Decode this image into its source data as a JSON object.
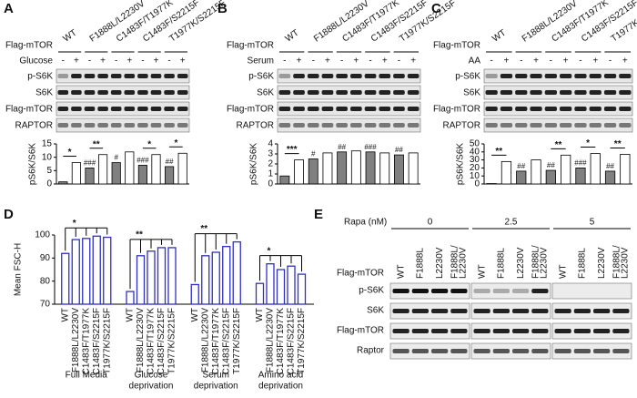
{
  "panel_labels": [
    "A",
    "B",
    "C",
    "D",
    "E"
  ],
  "blots": [
    {
      "construct_label": "Flag-mTOR",
      "lanes": [
        "WT",
        "F1888L/L2230V",
        "C1483F/T1977K",
        "C1483F/S2215F",
        "T1977K/S2215F"
      ],
      "treatment": "Glucose",
      "signs": [
        "-",
        "+"
      ],
      "rows": [
        "p-S6K",
        "S6K",
        "Flag-mTOR",
        "RAPTOR"
      ]
    },
    {
      "construct_label": "Flag-mTOR",
      "lanes": [
        "WT",
        "F1888L/L2230V",
        "C1483F/T1977K",
        "C1483F/S2215F",
        "T1977K/S2215F"
      ],
      "treatment": "Serum",
      "signs": [
        "-",
        "+"
      ],
      "rows": [
        "p-S6K",
        "S6K",
        "Flag-mTOR",
        "RAPTOR"
      ]
    },
    {
      "construct_label": "Flag-mTOR",
      "lanes": [
        "WT",
        "F1888L/L2230V",
        "C1483F/T1977K",
        "C1483F/S2215F",
        "T1977K/S2215F"
      ],
      "treatment": "AA",
      "signs": [
        "-",
        "+"
      ],
      "rows": [
        "p-S6K",
        "S6K",
        "Flag-mTOR",
        "RAPTOR"
      ]
    },
    {
      "treatment": "Rapa (nM)",
      "doses": [
        "0",
        "2.5",
        "5"
      ],
      "construct_label": "Flag-mTOR",
      "lanes": [
        [
          "WT"
        ],
        [
          "F1888L"
        ],
        [
          "L2230V"
        ],
        [
          "F1888L/",
          "L2230V"
        ]
      ],
      "rows": [
        "p-S6K",
        "S6K",
        "Flag-mTOR",
        "Raptor"
      ]
    }
  ],
  "chart_data": [
    {
      "type": "bar",
      "ylabel": "pS6K/S6K",
      "values": [
        0.8,
        8,
        6,
        11,
        8,
        12,
        7,
        11,
        6.5,
        11.5
      ],
      "colors": [
        "#808080",
        "#ffffff",
        "#808080",
        "#ffffff",
        "#808080",
        "#ffffff",
        "#808080",
        "#ffffff",
        "#808080",
        "#ffffff"
      ],
      "value_annotations": [
        null,
        null,
        "###",
        null,
        "#",
        null,
        "###",
        null,
        "##",
        null
      ],
      "pair_brackets": [
        "*",
        "**",
        null,
        "*",
        "*"
      ],
      "ylim": [
        0,
        15
      ],
      "yticks": [
        0,
        5,
        10,
        15
      ]
    },
    {
      "type": "bar",
      "ylabel": "pS6K/S6K",
      "values": [
        0.8,
        2.4,
        2.5,
        3.1,
        3.2,
        3.3,
        3.2,
        3.1,
        2.9,
        3.1
      ],
      "colors": [
        "#808080",
        "#ffffff",
        "#808080",
        "#ffffff",
        "#808080",
        "#ffffff",
        "#808080",
        "#ffffff",
        "#808080",
        "#ffffff"
      ],
      "value_annotations": [
        null,
        null,
        "#",
        null,
        "##",
        null,
        "###",
        null,
        "##",
        null
      ],
      "pair_brackets": [
        "***",
        null,
        null,
        null,
        null
      ],
      "ylim": [
        0,
        4
      ],
      "yticks": [
        0,
        1,
        2,
        3,
        4
      ]
    },
    {
      "type": "bar",
      "ylabel": "pS6K/S6K",
      "values": [
        0.5,
        28,
        16,
        30,
        17,
        36,
        20,
        38,
        16,
        37
      ],
      "colors": [
        "#808080",
        "#ffffff",
        "#808080",
        "#ffffff",
        "#808080",
        "#ffffff",
        "#808080",
        "#ffffff",
        "#808080",
        "#ffffff"
      ],
      "value_annotations": [
        null,
        null,
        "##",
        null,
        "##",
        null,
        "###",
        null,
        "##",
        null
      ],
      "pair_brackets": [
        "**",
        null,
        "**",
        "*",
        "**"
      ],
      "ylim": [
        0,
        50
      ],
      "yticks": [
        0,
        10,
        20,
        30,
        40,
        50
      ]
    },
    {
      "type": "grouped-bar",
      "ylabel": "Mean FSC-H",
      "color": "#2f2fc0",
      "categories": [
        "WT",
        "F1888L/L2230V",
        "C1483F/T1977K",
        "C1483F/S2215F",
        "T1977K/S2215F"
      ],
      "groups": [
        {
          "name": [
            "Full Media"
          ],
          "values": [
            92,
            98,
            98.5,
            99.5,
            99
          ],
          "bracket": "*"
        },
        {
          "name": [
            "Glucose",
            "deprivation"
          ],
          "values": [
            75.5,
            91,
            93,
            94.5,
            94.5
          ],
          "bracket": "**"
        },
        {
          "name": [
            "Serum",
            "deprivation"
          ],
          "values": [
            78.5,
            91,
            92.5,
            95,
            97
          ],
          "bracket": "**"
        },
        {
          "name": [
            "Amino acid",
            "deprivation"
          ],
          "values": [
            79,
            87.5,
            85,
            86.5,
            83
          ],
          "bracket": "*"
        }
      ],
      "ylim": [
        70,
        100
      ],
      "yticks": [
        70,
        80,
        90,
        100
      ]
    }
  ]
}
